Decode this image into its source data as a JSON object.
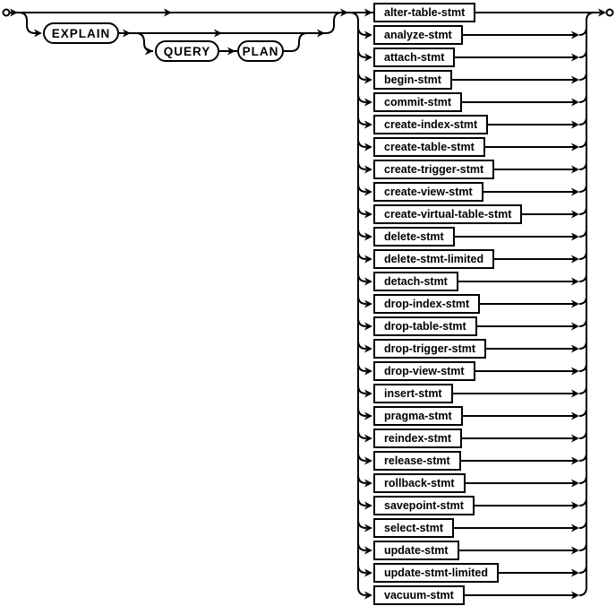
{
  "diagram": {
    "keywords": [
      {
        "label": "EXPLAIN"
      },
      {
        "label": "QUERY"
      },
      {
        "label": "PLAN"
      }
    ],
    "statements": [
      "alter-table-stmt",
      "analyze-stmt",
      "attach-stmt",
      "begin-stmt",
      "commit-stmt",
      "create-index-stmt",
      "create-table-stmt",
      "create-trigger-stmt",
      "create-view-stmt",
      "create-virtual-table-stmt",
      "delete-stmt",
      "delete-stmt-limited",
      "detach-stmt",
      "drop-index-stmt",
      "drop-table-stmt",
      "drop-trigger-stmt",
      "drop-view-stmt",
      "insert-stmt",
      "pragma-stmt",
      "reindex-stmt",
      "release-stmt",
      "rollback-stmt",
      "savepoint-stmt",
      "select-stmt",
      "update-stmt",
      "update-stmt-limited",
      "vacuum-stmt"
    ]
  },
  "colors": {
    "line": "#000000",
    "box_fill": "#ffffff",
    "text": "#000000",
    "background": "#ffffff"
  }
}
